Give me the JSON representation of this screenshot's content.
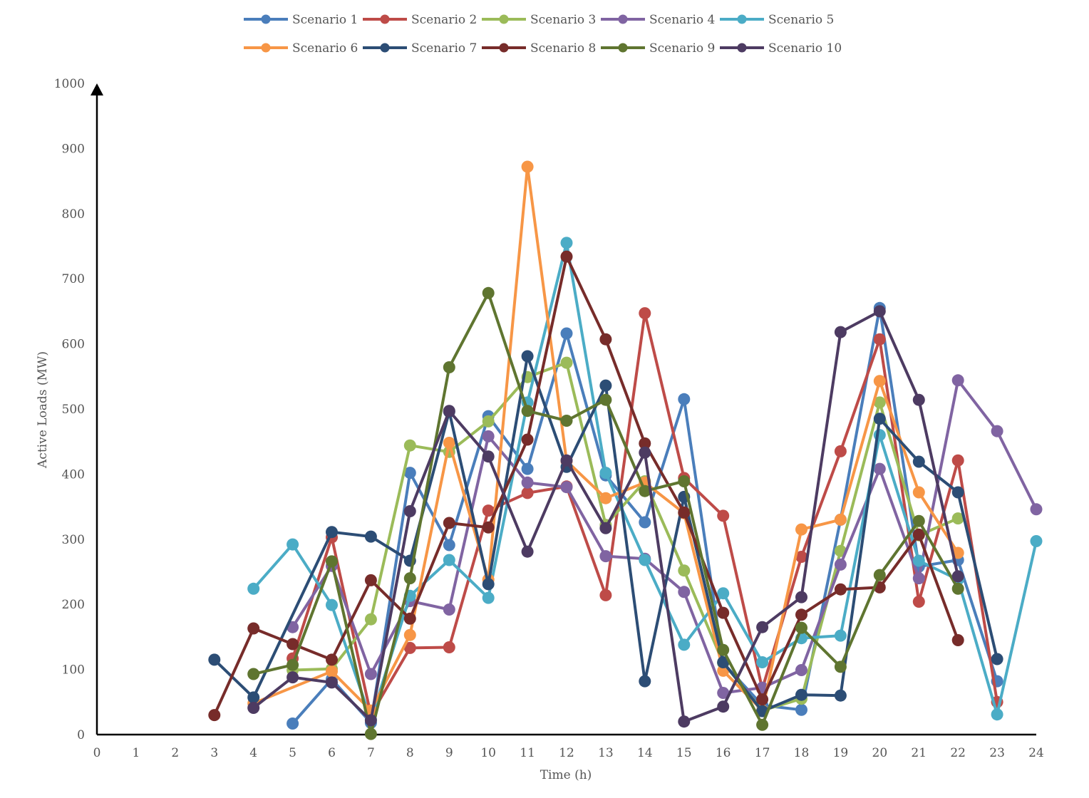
{
  "chart_data": {
    "type": "line",
    "title": "",
    "xlabel": "Time (h)",
    "ylabel": "Active Loads (MW)",
    "xlim": [
      0,
      24
    ],
    "ylim": [
      0,
      1000
    ],
    "xticks": [
      0,
      1,
      2,
      3,
      4,
      5,
      6,
      7,
      8,
      9,
      10,
      11,
      12,
      13,
      14,
      15,
      16,
      17,
      18,
      19,
      20,
      21,
      22,
      23,
      24
    ],
    "yticks": [
      0,
      100,
      200,
      300,
      400,
      500,
      600,
      700,
      800,
      900,
      1000
    ],
    "grid": false,
    "legend_position": "top",
    "series": [
      {
        "name": "Scenario 1",
        "color": "#4a7ebb",
        "points": [
          [
            5,
            17
          ],
          [
            6,
            85
          ],
          [
            7,
            18
          ],
          [
            8,
            402
          ],
          [
            9,
            291
          ],
          [
            10,
            489
          ],
          [
            11,
            408
          ],
          [
            12,
            616
          ],
          [
            13,
            398
          ],
          [
            14,
            326
          ],
          [
            15,
            515
          ],
          [
            16,
            110
          ],
          [
            17,
            45
          ],
          [
            18,
            38
          ],
          [
            19,
            330
          ],
          [
            20,
            655
          ],
          [
            21,
            258
          ],
          [
            22,
            268
          ],
          [
            23,
            82
          ]
        ]
      },
      {
        "name": "Scenario 2",
        "color": "#be4b48",
        "points": [
          [
            5,
            117
          ],
          [
            6,
            303
          ],
          [
            7,
            30
          ],
          [
            8,
            133
          ],
          [
            9,
            134
          ],
          [
            10,
            344
          ],
          [
            11,
            371
          ],
          [
            12,
            381
          ],
          [
            13,
            214
          ],
          [
            14,
            647
          ],
          [
            15,
            394
          ],
          [
            16,
            336
          ],
          [
            17,
            70
          ],
          [
            18,
            273
          ],
          [
            19,
            435
          ],
          [
            20,
            607
          ],
          [
            21,
            204
          ],
          [
            22,
            421
          ],
          [
            23,
            50
          ]
        ]
      },
      {
        "name": "Scenario 3",
        "color": "#9bbb59",
        "points": [
          [
            5,
            99
          ],
          [
            6,
            101
          ],
          [
            7,
            177
          ],
          [
            8,
            444
          ],
          [
            9,
            434
          ],
          [
            10,
            481
          ],
          [
            11,
            549
          ],
          [
            12,
            571
          ],
          [
            13,
            322
          ],
          [
            14,
            389
          ],
          [
            15,
            252
          ],
          [
            16,
            110
          ],
          [
            17,
            37
          ],
          [
            18,
            55
          ],
          [
            19,
            282
          ],
          [
            20,
            510
          ],
          [
            21,
            306
          ],
          [
            22,
            332
          ]
        ]
      },
      {
        "name": "Scenario 4",
        "color": "#8064a2",
        "points": [
          [
            5,
            165
          ],
          [
            6,
            259
          ],
          [
            7,
            93
          ],
          [
            8,
            205
          ],
          [
            9,
            192
          ],
          [
            10,
            458
          ],
          [
            11,
            387
          ],
          [
            12,
            380
          ],
          [
            13,
            274
          ],
          [
            14,
            270
          ],
          [
            15,
            219
          ],
          [
            16,
            64
          ],
          [
            17,
            72
          ],
          [
            18,
            99
          ],
          [
            19,
            261
          ],
          [
            20,
            408
          ],
          [
            21,
            240
          ],
          [
            22,
            544
          ],
          [
            23,
            466
          ],
          [
            24,
            346
          ]
        ]
      },
      {
        "name": "Scenario 5",
        "color": "#4bacc6",
        "points": [
          [
            4,
            224
          ],
          [
            5,
            292
          ],
          [
            6,
            199
          ],
          [
            7,
            23
          ],
          [
            8,
            213
          ],
          [
            9,
            268
          ],
          [
            10,
            210
          ],
          [
            11,
            510
          ],
          [
            12,
            755
          ],
          [
            13,
            402
          ],
          [
            14,
            268
          ],
          [
            15,
            138
          ],
          [
            16,
            217
          ],
          [
            17,
            111
          ],
          [
            18,
            148
          ],
          [
            19,
            152
          ],
          [
            20,
            460
          ],
          [
            21,
            267
          ],
          [
            22,
            238
          ],
          [
            23,
            31
          ],
          [
            24,
            297
          ]
        ]
      },
      {
        "name": "Scenario 6",
        "color": "#f79646",
        "points": [
          [
            4,
            48
          ],
          [
            6,
            97
          ],
          [
            7,
            37
          ],
          [
            8,
            153
          ],
          [
            9,
            448
          ],
          [
            10,
            238
          ],
          [
            11,
            872
          ],
          [
            12,
            420
          ],
          [
            13,
            363
          ],
          [
            14,
            387
          ],
          [
            15,
            340
          ],
          [
            16,
            98
          ],
          [
            17,
            37
          ],
          [
            18,
            315
          ],
          [
            19,
            330
          ],
          [
            20,
            543
          ],
          [
            21,
            372
          ],
          [
            22,
            279
          ]
        ]
      },
      {
        "name": "Scenario 7",
        "color": "#2c4d75",
        "points": [
          [
            3,
            115
          ],
          [
            4,
            57
          ],
          [
            6,
            311
          ],
          [
            7,
            304
          ],
          [
            8,
            267
          ],
          [
            9,
            496
          ],
          [
            10,
            231
          ],
          [
            11,
            581
          ],
          [
            12,
            411
          ],
          [
            13,
            536
          ],
          [
            14,
            82
          ],
          [
            15,
            365
          ],
          [
            16,
            111
          ],
          [
            17,
            36
          ],
          [
            18,
            61
          ],
          [
            19,
            60
          ],
          [
            20,
            485
          ],
          [
            21,
            419
          ],
          [
            22,
            372
          ],
          [
            23,
            116
          ]
        ]
      },
      {
        "name": "Scenario 8",
        "color": "#772c2a",
        "points": [
          [
            3,
            30
          ],
          [
            4,
            163
          ],
          [
            5,
            139
          ],
          [
            6,
            115
          ],
          [
            7,
            237
          ],
          [
            8,
            178
          ],
          [
            9,
            325
          ],
          [
            10,
            318
          ],
          [
            11,
            453
          ],
          [
            12,
            734
          ],
          [
            13,
            607
          ],
          [
            14,
            447
          ],
          [
            15,
            341
          ],
          [
            16,
            187
          ],
          [
            17,
            54
          ],
          [
            18,
            184
          ],
          [
            19,
            223
          ],
          [
            20,
            226
          ],
          [
            21,
            307
          ],
          [
            22,
            145
          ]
        ]
      },
      {
        "name": "Scenario 9",
        "color": "#5f7530",
        "points": [
          [
            4,
            93
          ],
          [
            5,
            107
          ],
          [
            6,
            266
          ],
          [
            7,
            1
          ],
          [
            8,
            240
          ],
          [
            9,
            564
          ],
          [
            10,
            678
          ],
          [
            11,
            497
          ],
          [
            12,
            482
          ],
          [
            13,
            514
          ],
          [
            14,
            374
          ],
          [
            15,
            389
          ],
          [
            16,
            130
          ],
          [
            17,
            15
          ],
          [
            18,
            164
          ],
          [
            19,
            104
          ],
          [
            20,
            245
          ],
          [
            21,
            328
          ],
          [
            22,
            224
          ]
        ]
      },
      {
        "name": "Scenario 10",
        "color": "#4d3b62",
        "points": [
          [
            4,
            41
          ],
          [
            5,
            88
          ],
          [
            6,
            80
          ],
          [
            7,
            22
          ],
          [
            8,
            343
          ],
          [
            9,
            497
          ],
          [
            10,
            427
          ],
          [
            11,
            281
          ],
          [
            12,
            421
          ],
          [
            13,
            317
          ],
          [
            14,
            433
          ],
          [
            15,
            20
          ],
          [
            16,
            43
          ],
          [
            17,
            165
          ],
          [
            18,
            211
          ],
          [
            19,
            618
          ],
          [
            20,
            650
          ],
          [
            21,
            514
          ],
          [
            22,
            243
          ]
        ]
      }
    ]
  }
}
